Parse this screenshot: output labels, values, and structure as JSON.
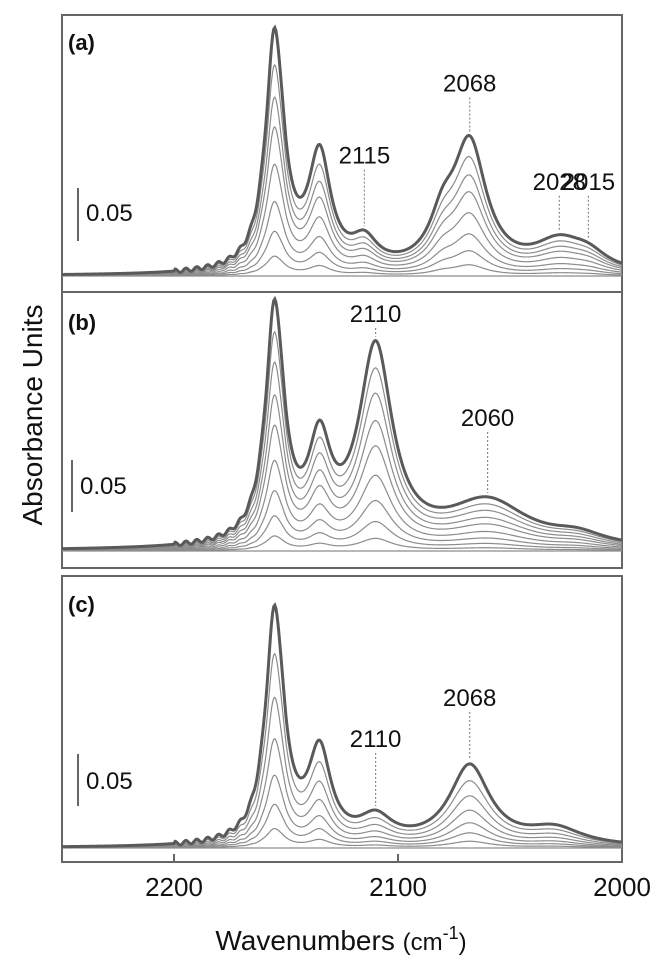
{
  "colors": {
    "frame": "#666666",
    "trace_light": "#8c8c8c",
    "trace_final": "#5a5a5a",
    "dotted": "#888888"
  },
  "chart_data": {
    "type": "line",
    "ylabel": "Absorbance Units",
    "xlabel_main": "Wavenumbers",
    "xlabel_unit": "(cm",
    "xlabel_exp": "-1",
    "xlabel_close": ")",
    "xlim": [
      2250,
      2000
    ],
    "x_ticks": [
      "2200",
      "2100",
      "2000"
    ],
    "x_tick_values": [
      2200,
      2100,
      2000
    ],
    "grid": false,
    "panels": [
      {
        "tag": "(a)",
        "scale_bar": "0.05",
        "ylim": [
          0,
          0.19
        ],
        "annotations": [
          {
            "label": "2115",
            "x": 2115,
            "y": 0.04
          },
          {
            "label": "2068",
            "x": 2068,
            "y": 0.095
          },
          {
            "label": "2028",
            "x": 2028,
            "y": 0.02
          },
          {
            "label": "2015",
            "x": 2015,
            "y": 0.02
          }
        ],
        "components": [
          {
            "center": 2155,
            "width": 5,
            "amp": 0.18
          },
          {
            "center": 2135,
            "width": 6,
            "amp": 0.085
          },
          {
            "center": 2115,
            "width": 7,
            "amp": 0.02
          },
          {
            "center": 2080,
            "width": 7,
            "amp": 0.03
          },
          {
            "center": 2068,
            "width": 9,
            "amp": 0.095
          },
          {
            "center": 2028,
            "width": 14,
            "amp": 0.022
          },
          {
            "center": 2015,
            "width": 10,
            "amp": 0.01
          }
        ],
        "coverage_steps": [
          0.0,
          0.08,
          0.18,
          0.3,
          0.45,
          0.6,
          0.72,
          0.85,
          1.0
        ]
      },
      {
        "tag": "(b)",
        "scale_bar": "0.05",
        "ylim": [
          0,
          0.19
        ],
        "annotations": [
          {
            "label": "2110",
            "x": 2110,
            "y": 0.155
          },
          {
            "label": "2060",
            "x": 2060,
            "y": 0.05
          }
        ],
        "components": [
          {
            "center": 2155,
            "width": 5,
            "amp": 0.18
          },
          {
            "center": 2135,
            "width": 6,
            "amp": 0.07
          },
          {
            "center": 2110,
            "width": 9,
            "amp": 0.15
          },
          {
            "center": 2060,
            "width": 22,
            "amp": 0.035
          },
          {
            "center": 2020,
            "width": 15,
            "amp": 0.008
          }
        ],
        "coverage_steps": [
          0.0,
          0.06,
          0.14,
          0.24,
          0.36,
          0.5,
          0.62,
          0.75,
          0.87,
          1.0
        ]
      },
      {
        "tag": "(c)",
        "scale_bar": "0.05",
        "ylim": [
          0,
          0.19
        ],
        "annotations": [
          {
            "label": "2110",
            "x": 2110,
            "y": 0.03
          },
          {
            "label": "2068",
            "x": 2068,
            "y": 0.06
          }
        ],
        "components": [
          {
            "center": 2155,
            "width": 5,
            "amp": 0.17
          },
          {
            "center": 2135,
            "width": 6,
            "amp": 0.065
          },
          {
            "center": 2110,
            "width": 9,
            "amp": 0.018
          },
          {
            "center": 2068,
            "width": 11,
            "amp": 0.058
          },
          {
            "center": 2030,
            "width": 15,
            "amp": 0.012
          }
        ],
        "coverage_steps": [
          0.0,
          0.08,
          0.18,
          0.3,
          0.45,
          0.62,
          0.8,
          1.0
        ]
      }
    ]
  }
}
